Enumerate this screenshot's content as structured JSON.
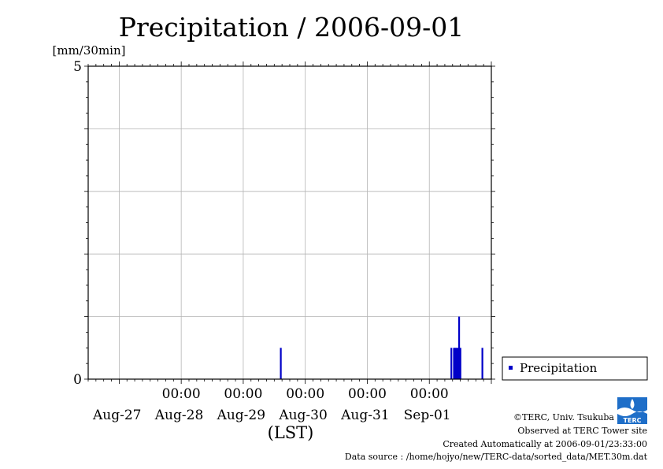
{
  "chart_data": {
    "type": "bar",
    "title": "Precipitation / 2006-09-01",
    "ylabel": "[mm/30min]",
    "xlabel": "(LST)",
    "ylim": [
      0,
      5
    ],
    "yticks": [
      "5",
      "0"
    ],
    "xlim": [
      "2006-08-26T12:00",
      "2006-09-02T00:00"
    ],
    "xticks": [
      {
        "time": "00:00",
        "date": "Aug-27"
      },
      {
        "time": "00:00",
        "date": "Aug-28"
      },
      {
        "time": "00:00",
        "date": "Aug-29"
      },
      {
        "time": "00:00",
        "date": "Aug-30"
      },
      {
        "time": "00:00",
        "date": "Aug-31"
      },
      {
        "time": "",
        "date": "Sep-01"
      }
    ],
    "grid": true,
    "legend_position": "right",
    "color": "#0000c8",
    "series": [
      {
        "name": "Precipitation",
        "points": [
          {
            "x": "2006-08-29T14:30",
            "y": 0.5
          },
          {
            "x": "2006-09-01T08:30",
            "y": 0.5
          },
          {
            "x": "2006-09-01T09:30",
            "y": 0.5
          },
          {
            "x": "2006-09-01T10:00",
            "y": 0.5
          },
          {
            "x": "2006-09-01T10:30",
            "y": 0.5
          },
          {
            "x": "2006-09-01T11:00",
            "y": 0.5
          },
          {
            "x": "2006-09-01T11:30",
            "y": 1.0
          },
          {
            "x": "2006-09-01T12:00",
            "y": 0.5
          },
          {
            "x": "2006-09-01T20:30",
            "y": 0.5
          }
        ]
      }
    ]
  },
  "footer": {
    "copyright": "©TERC, Univ. Tsukuba",
    "observed": "Observed at TERC Tower site",
    "created": "Created Automatically at 2006-09-01/23:33:00",
    "source": "Data source : /home/hojyo/new/TERC-data/sorted_data/MET.30m.dat",
    "logo_text": "TERC"
  }
}
